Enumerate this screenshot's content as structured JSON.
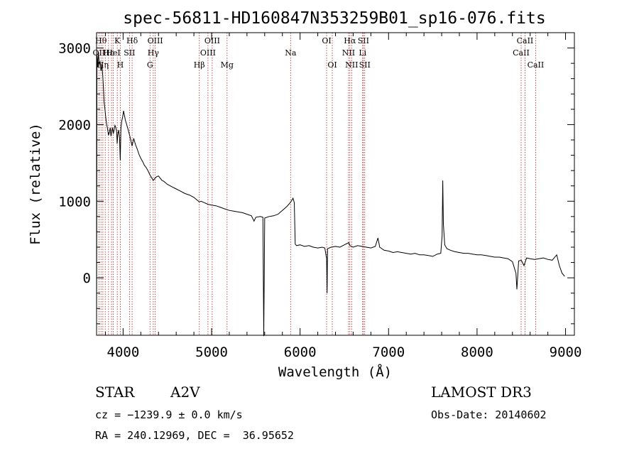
{
  "chart_data": {
    "type": "line",
    "title": "spec-56811-HD160847N353259B01_sp16-076.fits",
    "xlabel": "Wavelength (Å)",
    "ylabel": "Flux (relative)",
    "xlim": [
      3700,
      9100
    ],
    "ylim": [
      -750,
      3200
    ],
    "xticks": [
      4000,
      5000,
      6000,
      7000,
      8000,
      9000
    ],
    "yticks": [
      0,
      1000,
      2000,
      3000
    ],
    "grid": false,
    "line_color": "#000000",
    "marker_color": "#b22222",
    "series": [
      {
        "points": [
          [
            3700,
            -720
          ],
          [
            3705,
            2900
          ],
          [
            3712,
            2750
          ],
          [
            3720,
            2950
          ],
          [
            3730,
            2800
          ],
          [
            3740,
            2820
          ],
          [
            3750,
            2700
          ],
          [
            3760,
            2780
          ],
          [
            3770,
            2640
          ],
          [
            3778,
            2480
          ],
          [
            3785,
            2300
          ],
          [
            3795,
            2200
          ],
          [
            3805,
            2080
          ],
          [
            3815,
            2000
          ],
          [
            3825,
            1940
          ],
          [
            3835,
            1860
          ],
          [
            3845,
            1900
          ],
          [
            3855,
            1960
          ],
          [
            3862,
            1850
          ],
          [
            3870,
            1900
          ],
          [
            3880,
            1960
          ],
          [
            3889,
            1880
          ],
          [
            3898,
            1930
          ],
          [
            3908,
            1990
          ],
          [
            3918,
            1960
          ],
          [
            3928,
            1900
          ],
          [
            3933,
            1750
          ],
          [
            3940,
            1870
          ],
          [
            3950,
            1930
          ],
          [
            3960,
            1820
          ],
          [
            3968,
            1530
          ],
          [
            3975,
            1950
          ],
          [
            3985,
            2050
          ],
          [
            3995,
            2100
          ],
          [
            4005,
            2180
          ],
          [
            4015,
            2120
          ],
          [
            4025,
            2060
          ],
          [
            4040,
            2000
          ],
          [
            4060,
            1920
          ],
          [
            4080,
            1830
          ],
          [
            4101,
            1720
          ],
          [
            4120,
            1820
          ],
          [
            4140,
            1740
          ],
          [
            4160,
            1680
          ],
          [
            4180,
            1610
          ],
          [
            4200,
            1560
          ],
          [
            4220,
            1520
          ],
          [
            4240,
            1470
          ],
          [
            4260,
            1440
          ],
          [
            4280,
            1400
          ],
          [
            4300,
            1350
          ],
          [
            4320,
            1310
          ],
          [
            4340,
            1270
          ],
          [
            4360,
            1300
          ],
          [
            4380,
            1320
          ],
          [
            4400,
            1330
          ],
          [
            4420,
            1300
          ],
          [
            4440,
            1270
          ],
          [
            4460,
            1260
          ],
          [
            4480,
            1240
          ],
          [
            4500,
            1220
          ],
          [
            4550,
            1190
          ],
          [
            4600,
            1160
          ],
          [
            4650,
            1130
          ],
          [
            4700,
            1100
          ],
          [
            4750,
            1080
          ],
          [
            4800,
            1050
          ],
          [
            4861,
            990
          ],
          [
            4880,
            1000
          ],
          [
            4920,
            980
          ],
          [
            4960,
            960
          ],
          [
            5000,
            950
          ],
          [
            5050,
            940
          ],
          [
            5100,
            920
          ],
          [
            5150,
            900
          ],
          [
            5200,
            880
          ],
          [
            5250,
            870
          ],
          [
            5300,
            860
          ],
          [
            5350,
            850
          ],
          [
            5400,
            830
          ],
          [
            5450,
            810
          ],
          [
            5480,
            740
          ],
          [
            5500,
            790
          ],
          [
            5550,
            800
          ],
          [
            5580,
            790
          ],
          [
            5590,
            -760
          ],
          [
            5600,
            780
          ],
          [
            5650,
            800
          ],
          [
            5700,
            810
          ],
          [
            5750,
            830
          ],
          [
            5800,
            880
          ],
          [
            5850,
            930
          ],
          [
            5880,
            970
          ],
          [
            5900,
            1000
          ],
          [
            5920,
            1040
          ],
          [
            5935,
            980
          ],
          [
            5945,
            440
          ],
          [
            5960,
            420
          ],
          [
            6000,
            430
          ],
          [
            6050,
            410
          ],
          [
            6100,
            420
          ],
          [
            6150,
            400
          ],
          [
            6200,
            390
          ],
          [
            6250,
            400
          ],
          [
            6280,
            390
          ],
          [
            6300,
            250
          ],
          [
            6305,
            -200
          ],
          [
            6310,
            380
          ],
          [
            6350,
            400
          ],
          [
            6400,
            410
          ],
          [
            6450,
            400
          ],
          [
            6500,
            430
          ],
          [
            6550,
            460
          ],
          [
            6563,
            420
          ],
          [
            6600,
            400
          ],
          [
            6650,
            420
          ],
          [
            6700,
            410
          ],
          [
            6750,
            400
          ],
          [
            6800,
            390
          ],
          [
            6850,
            410
          ],
          [
            6880,
            520
          ],
          [
            6900,
            400
          ],
          [
            6950,
            360
          ],
          [
            7000,
            350
          ],
          [
            7050,
            330
          ],
          [
            7100,
            340
          ],
          [
            7150,
            330
          ],
          [
            7200,
            320
          ],
          [
            7250,
            310
          ],
          [
            7300,
            320
          ],
          [
            7350,
            300
          ],
          [
            7400,
            300
          ],
          [
            7450,
            290
          ],
          [
            7500,
            280
          ],
          [
            7550,
            310
          ],
          [
            7590,
            320
          ],
          [
            7605,
            550
          ],
          [
            7612,
            1270
          ],
          [
            7620,
            700
          ],
          [
            7635,
            430
          ],
          [
            7660,
            380
          ],
          [
            7700,
            360
          ],
          [
            7750,
            340
          ],
          [
            7800,
            330
          ],
          [
            7850,
            320
          ],
          [
            7900,
            320
          ],
          [
            7950,
            310
          ],
          [
            8000,
            300
          ],
          [
            8050,
            300
          ],
          [
            8100,
            290
          ],
          [
            8150,
            280
          ],
          [
            8200,
            270
          ],
          [
            8250,
            270
          ],
          [
            8300,
            260
          ],
          [
            8350,
            250
          ],
          [
            8400,
            210
          ],
          [
            8440,
            60
          ],
          [
            8450,
            -150
          ],
          [
            8470,
            220
          ],
          [
            8500,
            230
          ],
          [
            8530,
            160
          ],
          [
            8560,
            260
          ],
          [
            8600,
            250
          ],
          [
            8650,
            240
          ],
          [
            8700,
            250
          ],
          [
            8750,
            260
          ],
          [
            8800,
            240
          ],
          [
            8850,
            230
          ],
          [
            8900,
            300
          ],
          [
            8930,
            160
          ],
          [
            8960,
            60
          ],
          [
            8990,
            20
          ]
        ]
      }
    ],
    "line_markers": [
      {
        "x": 3727,
        "label": "OII",
        "row": 1
      },
      {
        "x": 3750,
        "label": "Hθ",
        "row": 0
      },
      {
        "x": 3771,
        "label": "Hη",
        "row": 2
      },
      {
        "x": 3798,
        "label": "",
        "row": 0
      },
      {
        "x": 3835,
        "label": "Hε",
        "row": 1
      },
      {
        "x": 3869,
        "label": "",
        "row": 0
      },
      {
        "x": 3889,
        "label": "HeI",
        "row": 1
      },
      {
        "x": 3934,
        "label": "K",
        "row": 0
      },
      {
        "x": 3968,
        "label": "H",
        "row": 2
      },
      {
        "x": 4072,
        "label": "SII",
        "row": 1
      },
      {
        "x": 4102,
        "label": "Hδ",
        "row": 0
      },
      {
        "x": 4304,
        "label": "G",
        "row": 2
      },
      {
        "x": 4341,
        "label": "Hγ",
        "row": 1
      },
      {
        "x": 4363,
        "label": "OIII",
        "row": 0
      },
      {
        "x": 4861,
        "label": "Hβ",
        "row": 2
      },
      {
        "x": 4959,
        "label": "OIII",
        "row": 1
      },
      {
        "x": 5007,
        "label": "OIII",
        "row": 0
      },
      {
        "x": 5175,
        "label": "Mg",
        "row": 2
      },
      {
        "x": 5893,
        "label": "Na",
        "row": 1
      },
      {
        "x": 6300,
        "label": "OI",
        "row": 0
      },
      {
        "x": 6364,
        "label": "OI",
        "row": 2
      },
      {
        "x": 6548,
        "label": "NII",
        "row": 1
      },
      {
        "x": 6563,
        "label": "Hα",
        "row": 0
      },
      {
        "x": 6583,
        "label": "NII",
        "row": 2
      },
      {
        "x": 6707,
        "label": "Li",
        "row": 1
      },
      {
        "x": 6716,
        "label": "SII",
        "row": 0
      },
      {
        "x": 6731,
        "label": "SII",
        "row": 2
      },
      {
        "x": 8498,
        "label": "CaII",
        "row": 1
      },
      {
        "x": 8542,
        "label": "CaII",
        "row": 0
      },
      {
        "x": 8662,
        "label": "CaII",
        "row": 2
      }
    ]
  },
  "info": {
    "object_type": "STAR",
    "subclass": "A2V",
    "survey": "LAMOST DR3",
    "velocity": "cz = −1239.9 ± 0.0 km/s",
    "obs_date": "Obs-Date: 20140602",
    "coordinates": "RA = 240.12969, DEC =  36.95652"
  }
}
